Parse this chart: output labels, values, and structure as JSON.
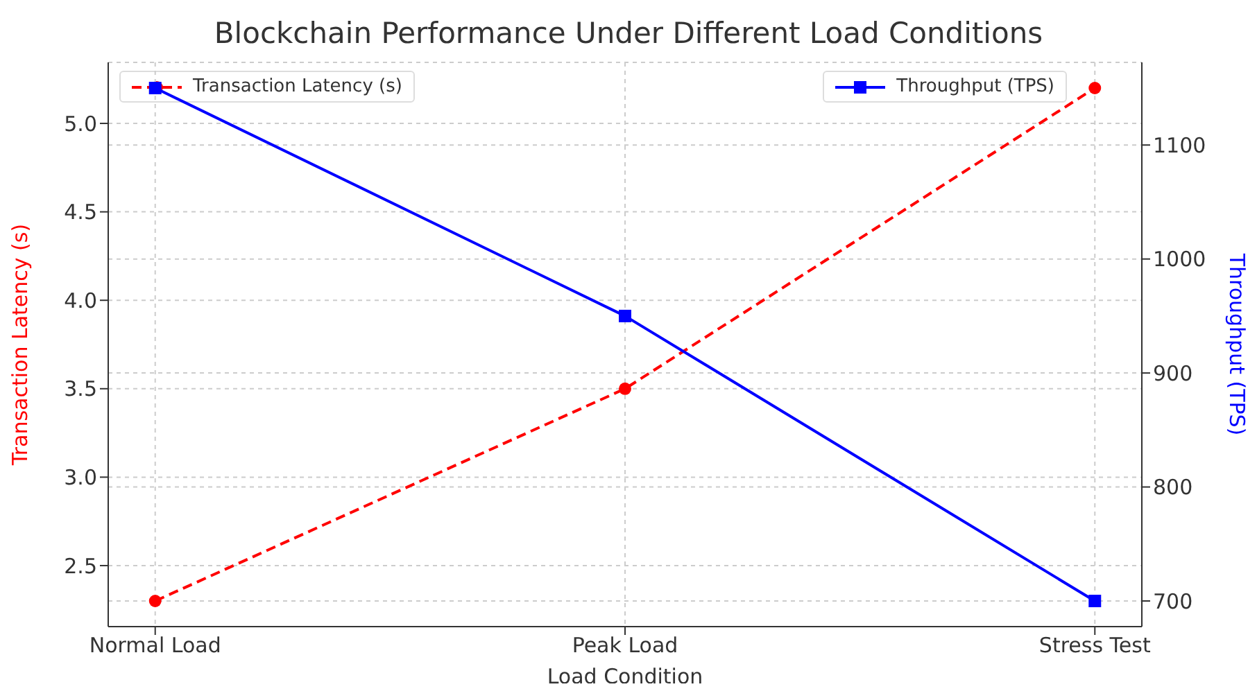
{
  "chart_data": {
    "type": "line",
    "title": "Blockchain Performance Under Different Load Conditions",
    "categories": [
      "Normal Load",
      "Peak Load",
      "Stress Test"
    ],
    "xlabel": "Load Condition",
    "ylabel": "Transaction Latency (s)",
    "y2label": "Throughput (TPS)",
    "series": [
      {
        "name": "Transaction Latency (s)",
        "color": "#ff0000",
        "values": [
          2.3,
          3.5,
          5.2
        ],
        "marker": "circle",
        "line_style": "dashed"
      },
      {
        "name": "Throughput (TPS)",
        "color": "#0000ff",
        "values": [
          1150,
          950,
          700
        ],
        "axis": "y2",
        "marker": "square",
        "line_style": "solid"
      }
    ],
    "ylim": [
      2.155,
      5.345
    ],
    "yticks": [
      2.5,
      {
        "value": 3,
        "label": "3.0"
      },
      3.5,
      {
        "value": 4,
        "label": "4.0"
      },
      4.5,
      {
        "value": 5,
        "label": "5.0"
      }
    ],
    "y2lim": [
      677.5,
      1172.5
    ],
    "y2ticks": [
      700,
      800,
      900,
      1000,
      1100
    ],
    "grid": true,
    "legend": "top"
  }
}
